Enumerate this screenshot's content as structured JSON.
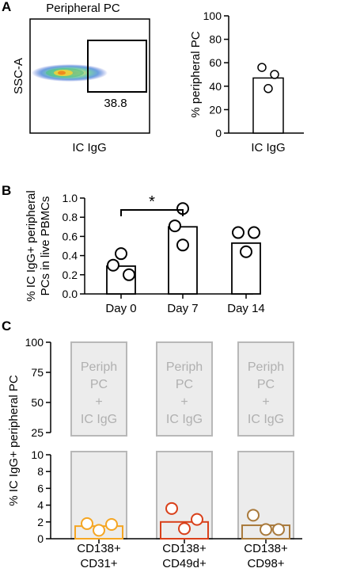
{
  "panel_letters": [
    "A",
    "B",
    "C"
  ],
  "flow_plot": {
    "title": "Peripheral PC",
    "xlabel": "IC IgG",
    "ylabel": "SSC-A",
    "gate_value": "38.8"
  },
  "chart_data": [
    {
      "type": "bar",
      "categories": [
        "IC IgG"
      ],
      "values": [
        47
      ],
      "points": [
        [
          56,
          50,
          38
        ]
      ],
      "ylabel": "% peripheral PC",
      "ylim": [
        0,
        100
      ],
      "yticks": [
        0,
        20,
        40,
        60,
        80,
        100
      ]
    },
    {
      "type": "bar",
      "categories": [
        "Day 0",
        "Day 7",
        "Day 14"
      ],
      "values": [
        0.29,
        0.7,
        0.53
      ],
      "points": [
        [
          0.42,
          0.3,
          0.2
        ],
        [
          0.89,
          0.71,
          0.51
        ],
        [
          0.64,
          0.64,
          0.44
        ]
      ],
      "ylabel_lines": [
        "% IC IgG+ peripheral",
        "PCs in live PBMCs"
      ],
      "ylim": [
        0,
        1.0
      ],
      "yticks": [
        "0.0",
        "0.2",
        "0.4",
        "0.6",
        "0.8",
        "1.0"
      ],
      "significance": {
        "from": "Day 0",
        "to": "Day 7",
        "label": "*"
      }
    },
    {
      "type": "bar",
      "categories": [
        "CD138+\nCD31+",
        "CD138+\nCD49d+",
        "CD138+\nCD98+"
      ],
      "category_lines": [
        [
          "CD138+",
          "CD31+"
        ],
        [
          "CD138+",
          "CD49d+"
        ],
        [
          "CD138+",
          "CD98+"
        ]
      ],
      "values": [
        1.5,
        2.0,
        1.6
      ],
      "points": [
        [
          1.8,
          1.0,
          1.7
        ],
        [
          3.6,
          1.2,
          2.3
        ],
        [
          2.8,
          1.1,
          1.1
        ]
      ],
      "colors": [
        "#f5a623",
        "#d9401a",
        "#a97a3c"
      ],
      "ylabel": "% IC IgG+ peripheral PC",
      "ylim_lower": [
        0,
        10
      ],
      "ylim_upper": [
        25,
        100
      ],
      "yticks_lower": [
        0,
        2,
        4,
        6,
        8,
        10
      ],
      "yticks_upper": [
        25,
        50,
        75,
        100
      ],
      "box_lines": [
        "Periph",
        "PC",
        "+",
        "IC IgG"
      ]
    }
  ]
}
